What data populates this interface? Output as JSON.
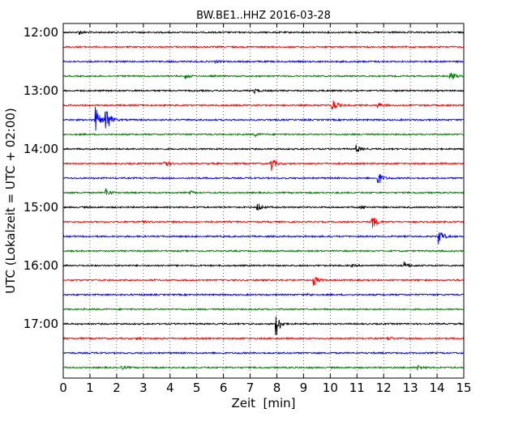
{
  "chart_data": {
    "type": "line",
    "title": "BW.BE1..HHZ 2016-03-28",
    "xlabel": "Zeit  [min]",
    "ylabel": "UTC (Lokalzeit = UTC + 02:00)",
    "xlim": [
      0,
      15
    ],
    "x_ticks": [
      "0",
      "1",
      "2",
      "3",
      "4",
      "5",
      "6",
      "7",
      "8",
      "9",
      "10",
      "11",
      "12",
      "13",
      "14",
      "15"
    ],
    "y_ticks": [
      {
        "label": "12:00",
        "row": 0
      },
      {
        "label": "13:00",
        "row": 4
      },
      {
        "label": "14:00",
        "row": 8
      },
      {
        "label": "15:00",
        "row": 12
      },
      {
        "label": "16:00",
        "row": 16
      },
      {
        "label": "17:00",
        "row": 20
      }
    ],
    "row_interval_min": 15,
    "row_count": 24,
    "colors": [
      "#000000",
      "#ff0000",
      "#0000ff",
      "#008000"
    ],
    "grid": {
      "x": true,
      "y": false,
      "style": "dotted"
    },
    "events": [
      {
        "row": 0,
        "t": 0.6,
        "amp": 0.25
      },
      {
        "row": 2,
        "t": 5.7,
        "amp": 0.12
      },
      {
        "row": 3,
        "t": 4.6,
        "amp": 0.35
      },
      {
        "row": 3,
        "t": 14.5,
        "amp": 0.9
      },
      {
        "row": 4,
        "t": 7.2,
        "amp": 0.3
      },
      {
        "row": 5,
        "t": 10.1,
        "amp": 0.95
      },
      {
        "row": 5,
        "t": 11.8,
        "amp": 0.4
      },
      {
        "row": 6,
        "t": 1.2,
        "amp": 2.0
      },
      {
        "row": 6,
        "t": 1.6,
        "amp": 2.2
      },
      {
        "row": 7,
        "t": 7.2,
        "amp": 0.22
      },
      {
        "row": 8,
        "t": 11.0,
        "amp": 0.55
      },
      {
        "row": 9,
        "t": 3.8,
        "amp": 0.6
      },
      {
        "row": 9,
        "t": 7.8,
        "amp": 1.0
      },
      {
        "row": 10,
        "t": 11.8,
        "amp": 0.95
      },
      {
        "row": 11,
        "t": 1.6,
        "amp": 0.6
      },
      {
        "row": 11,
        "t": 4.8,
        "amp": 0.18
      },
      {
        "row": 12,
        "t": 7.3,
        "amp": 0.55
      },
      {
        "row": 12,
        "t": 11.2,
        "amp": 0.2
      },
      {
        "row": 13,
        "t": 11.6,
        "amp": 0.95
      },
      {
        "row": 13,
        "t": 3.0,
        "amp": 0.12
      },
      {
        "row": 14,
        "t": 14.1,
        "amp": 1.0
      },
      {
        "row": 16,
        "t": 12.8,
        "amp": 0.5
      },
      {
        "row": 16,
        "t": 10.8,
        "amp": 0.12
      },
      {
        "row": 17,
        "t": 9.4,
        "amp": 0.7
      },
      {
        "row": 18,
        "t": 9.2,
        "amp": 0.12
      },
      {
        "row": 20,
        "t": 8.0,
        "amp": 1.5
      },
      {
        "row": 21,
        "t": 12.2,
        "amp": 0.25
      },
      {
        "row": 21,
        "t": 2.8,
        "amp": 0.12
      },
      {
        "row": 23,
        "t": 2.2,
        "amp": 0.2
      },
      {
        "row": 23,
        "t": 13.3,
        "amp": 0.35
      }
    ]
  }
}
